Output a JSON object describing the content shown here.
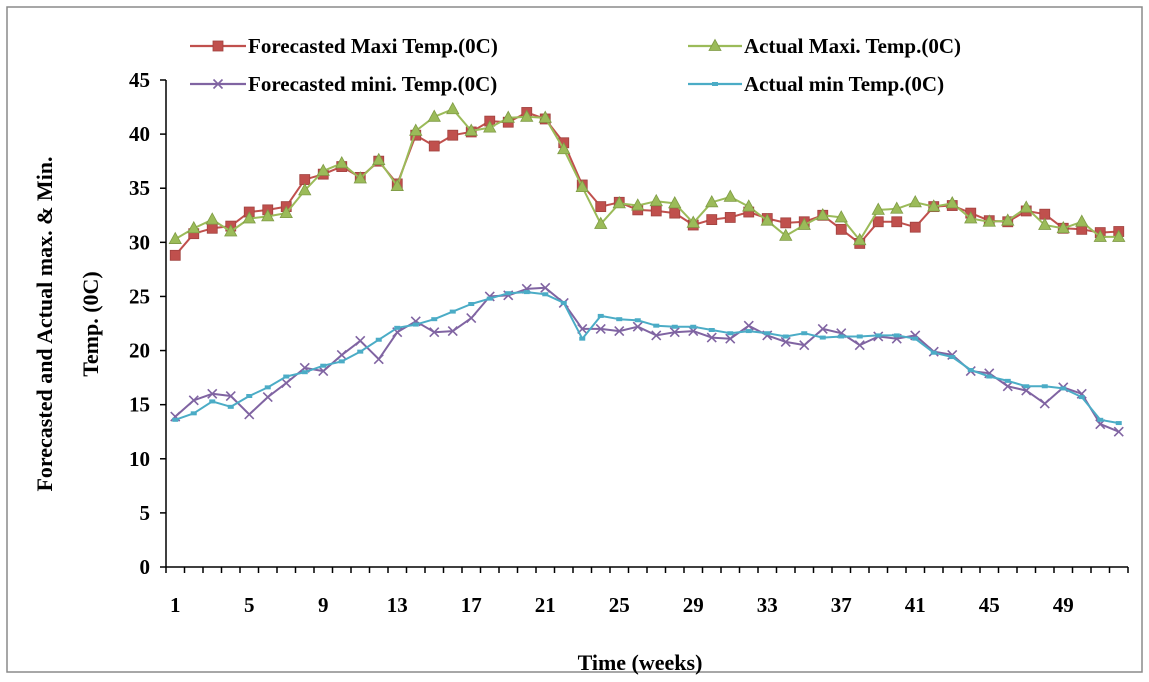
{
  "chart_data": {
    "type": "line",
    "title": "",
    "xlabel": "Time (weeks)",
    "ylabel_lines": [
      "Forecasted and Actual max. & Min.",
      "Temp. (0C)"
    ],
    "ylim": [
      0,
      45
    ],
    "yticks": [
      0,
      5,
      10,
      15,
      20,
      25,
      30,
      35,
      40,
      45
    ],
    "xlim": [
      0.5,
      52.5
    ],
    "xtick_labels": [
      "1",
      "5",
      "9",
      "13",
      "17",
      "21",
      "25",
      "29",
      "33",
      "37",
      "41",
      "45",
      "49"
    ],
    "xtick_values": [
      1,
      5,
      9,
      13,
      17,
      21,
      25,
      29,
      33,
      37,
      41,
      45,
      49
    ],
    "x": [
      1,
      2,
      3,
      4,
      5,
      6,
      7,
      8,
      9,
      10,
      11,
      12,
      13,
      14,
      15,
      16,
      17,
      18,
      19,
      20,
      21,
      22,
      23,
      24,
      25,
      26,
      27,
      28,
      29,
      30,
      31,
      32,
      33,
      34,
      35,
      36,
      37,
      38,
      39,
      40,
      41,
      42,
      43,
      44,
      45,
      46,
      47,
      48,
      49,
      50,
      51,
      52
    ],
    "legend_placement": "top",
    "grid": false,
    "series": [
      {
        "name": "Forecasted Maxi Temp.(0C)",
        "color": "#c0504d",
        "marker": "square",
        "values": [
          28.8,
          30.8,
          31.3,
          31.5,
          32.8,
          33.0,
          33.3,
          35.8,
          36.3,
          37.0,
          36.0,
          37.5,
          35.4,
          39.9,
          38.9,
          39.9,
          40.2,
          41.2,
          41.1,
          42.0,
          41.4,
          39.2,
          35.3,
          33.3,
          33.7,
          33.0,
          32.9,
          32.7,
          31.6,
          32.1,
          32.3,
          32.8,
          32.2,
          31.8,
          31.9,
          32.5,
          31.2,
          29.9,
          31.9,
          31.9,
          31.4,
          33.3,
          33.4,
          32.7,
          32.0,
          31.9,
          32.9,
          32.6,
          31.3,
          31.2,
          30.9,
          31.0
        ]
      },
      {
        "name": "Actual Maxi. Temp.(0C)",
        "color": "#9bbb59",
        "marker": "triangle",
        "values": [
          30.3,
          31.3,
          32.1,
          31.0,
          32.2,
          32.4,
          32.7,
          34.8,
          36.6,
          37.3,
          35.9,
          37.6,
          35.2,
          40.3,
          41.6,
          42.3,
          40.3,
          40.6,
          41.5,
          41.6,
          41.5,
          38.6,
          35.1,
          31.7,
          33.6,
          33.4,
          33.8,
          33.6,
          31.8,
          33.7,
          34.2,
          33.3,
          32.0,
          30.6,
          31.6,
          32.5,
          32.3,
          30.2,
          33.0,
          33.1,
          33.7,
          33.3,
          33.6,
          32.2,
          31.9,
          32.0,
          33.2,
          31.6,
          31.3,
          31.9,
          30.5,
          30.5
        ]
      },
      {
        "name": "Forecasted mini. Temp.(0C)",
        "color": "#8064a2",
        "marker": "x",
        "values": [
          13.9,
          15.4,
          16.0,
          15.8,
          14.1,
          15.7,
          17.0,
          18.4,
          18.1,
          19.6,
          20.9,
          19.2,
          21.7,
          22.7,
          21.7,
          21.8,
          23.0,
          25.0,
          25.1,
          25.7,
          25.8,
          24.4,
          22.0,
          22.0,
          21.8,
          22.2,
          21.4,
          21.7,
          21.8,
          21.2,
          21.1,
          22.3,
          21.4,
          20.8,
          20.5,
          22.0,
          21.6,
          20.5,
          21.3,
          21.1,
          21.4,
          19.9,
          19.6,
          18.1,
          17.9,
          16.7,
          16.3,
          15.1,
          16.6,
          16.0,
          13.2,
          12.5
        ]
      },
      {
        "name": "Actual min Temp.(0C)",
        "color": "#4bacc6",
        "marker": "dash",
        "values": [
          13.6,
          14.2,
          15.3,
          14.8,
          15.8,
          16.6,
          17.6,
          18.0,
          18.6,
          19.0,
          19.9,
          21.0,
          22.1,
          22.4,
          22.9,
          23.6,
          24.3,
          24.8,
          25.3,
          25.4,
          25.2,
          24.4,
          21.1,
          23.2,
          22.9,
          22.8,
          22.3,
          22.2,
          22.2,
          21.9,
          21.6,
          21.8,
          21.6,
          21.3,
          21.6,
          21.2,
          21.3,
          21.3,
          21.4,
          21.4,
          21.1,
          19.8,
          19.4,
          18.2,
          17.6,
          17.2,
          16.7,
          16.7,
          16.5,
          15.7,
          13.6,
          13.3
        ]
      }
    ]
  }
}
